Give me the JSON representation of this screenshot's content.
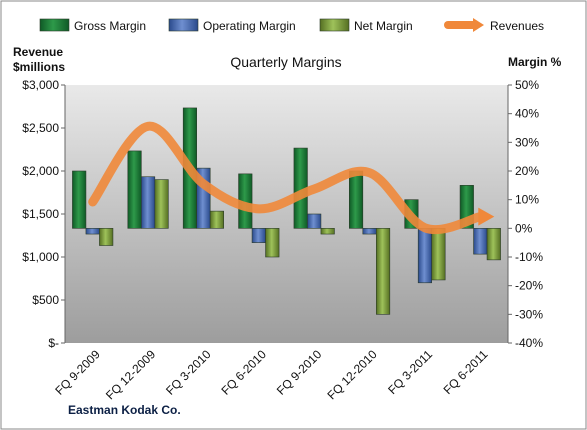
{
  "chart_data": {
    "type": "bar",
    "title": "Quarterly Margins",
    "company": "Eastman Kodak Co.",
    "left_axis": {
      "title_line1": "Revenue",
      "title_line2": "$millions",
      "ylim": [
        0,
        3000
      ],
      "ticks": [
        0,
        500,
        1000,
        1500,
        2000,
        2500,
        3000
      ],
      "tick_labels": [
        "$-",
        "$500",
        "$1,000",
        "$1,500",
        "$2,000",
        "$2,500",
        "$3,000"
      ]
    },
    "right_axis": {
      "title": "Margin %",
      "ylim": [
        -40,
        50
      ],
      "ticks": [
        -40,
        -30,
        -20,
        -10,
        0,
        10,
        20,
        30,
        40,
        50
      ],
      "tick_labels": [
        "-40%",
        "-30%",
        "-20%",
        "-10%",
        "0%",
        "10%",
        "20%",
        "30%",
        "40%",
        "50%"
      ]
    },
    "categories": [
      "FQ 9-2009",
      "FQ 12-2009",
      "FQ 3-2010",
      "FQ 6-2010",
      "FQ 9-2010",
      "FQ 12-2010",
      "FQ 3-2011",
      "FQ 6-2011"
    ],
    "series": [
      {
        "name": "Gross Margin",
        "axis": "right",
        "values": [
          20,
          27,
          42,
          19,
          28,
          20,
          10,
          15
        ],
        "color": "#1e7d3a"
      },
      {
        "name": "Operating Margin",
        "axis": "right",
        "values": [
          -2,
          18,
          21,
          -5,
          5,
          -2,
          -19,
          -9
        ],
        "color": "#3f66b3"
      },
      {
        "name": "Net Margin",
        "axis": "right",
        "values": [
          -6,
          17,
          6,
          -10,
          -2,
          -30,
          -18,
          -11
        ],
        "color": "#7aa33a"
      },
      {
        "name": "Revenues",
        "type": "line",
        "axis": "left",
        "values": [
          1640,
          2520,
          1850,
          1560,
          1790,
          1980,
          1340,
          1470
        ],
        "color": "#f0883a"
      }
    ],
    "legend_position": "top",
    "grid": false,
    "plot_background": "gradient gray"
  }
}
